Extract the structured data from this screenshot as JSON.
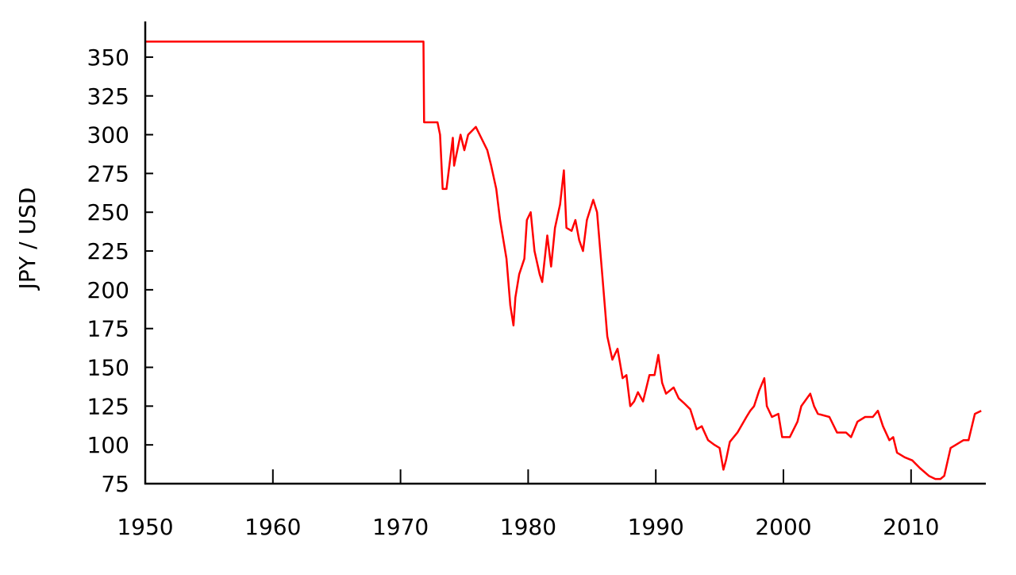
{
  "chart_data": {
    "type": "line",
    "title": "",
    "xlabel": "",
    "ylabel": "JPY / USD",
    "xlim": [
      1950,
      2015.8
    ],
    "ylim": [
      75,
      373
    ],
    "xticks": [
      1950,
      1960,
      1970,
      1980,
      1990,
      2000,
      2010
    ],
    "xtick_labels": [
      "1950",
      "1960",
      "1970",
      "1980",
      "1990",
      "2000",
      "2010"
    ],
    "yticks": [
      75,
      100,
      125,
      150,
      175,
      200,
      225,
      250,
      275,
      300,
      325,
      350
    ],
    "ytick_labels": [
      "75",
      "100",
      "125",
      "150",
      "175",
      "200",
      "225",
      "250",
      "275",
      "300",
      "325",
      "350"
    ],
    "grid": false,
    "line_color": "#ff0000",
    "series": [
      {
        "x": [
          1950,
          1971.8,
          1971.85,
          1972.9,
          1973.1,
          1973.3,
          1973.6,
          1974.1,
          1974.2,
          1974.7,
          1975.0,
          1975.3,
          1975.9,
          1976.5,
          1976.8,
          1977.1,
          1977.5,
          1977.8,
          1978.3,
          1978.6,
          1978.85,
          1979.0,
          1979.3,
          1979.7,
          1979.9,
          1980.2,
          1980.5,
          1980.9,
          1981.1,
          1981.5,
          1981.8,
          1982.1,
          1982.5,
          1982.8,
          1983.0,
          1983.4,
          1983.7,
          1984.0,
          1984.3,
          1984.6,
          1985.1,
          1985.4,
          1985.8,
          1986.2,
          1986.6,
          1987.0,
          1987.4,
          1987.7,
          1988.0,
          1988.3,
          1988.6,
          1989.0,
          1989.5,
          1989.9,
          1990.2,
          1990.5,
          1990.8,
          1991.4,
          1991.8,
          1992.2,
          1992.7,
          1993.2,
          1993.6,
          1994.1,
          1994.6,
          1995.0,
          1995.3,
          1995.5,
          1995.8,
          1996.4,
          1997.1,
          1997.4,
          1997.7,
          1998.1,
          1998.5,
          1998.7,
          1999.1,
          1999.6,
          1999.9,
          2000.5,
          2001.1,
          2001.4,
          2002.1,
          2002.4,
          2002.7,
          2003.6,
          2004.2,
          2004.9,
          2005.3,
          2005.8,
          2006.4,
          2007.0,
          2007.4,
          2007.8,
          2008.3,
          2008.6,
          2008.9,
          2009.5,
          2010.1,
          2010.7,
          2011.4,
          2011.9,
          2012.3,
          2012.6,
          2013.1,
          2013.5,
          2014.1,
          2014.5,
          2015.0,
          2015.5
        ],
        "y": [
          360,
          360,
          308,
          308,
          300,
          265,
          265,
          298,
          280,
          300,
          290,
          300,
          305,
          295,
          290,
          280,
          265,
          245,
          220,
          190,
          177,
          195,
          210,
          220,
          245,
          250,
          225,
          210,
          205,
          235,
          215,
          240,
          255,
          277,
          240,
          238,
          245,
          232,
          225,
          245,
          258,
          250,
          210,
          170,
          155,
          162,
          143,
          145,
          125,
          128,
          134,
          128,
          145,
          145,
          158,
          140,
          133,
          137,
          130,
          127,
          123,
          110,
          112,
          103,
          100,
          98,
          84,
          90,
          102,
          108,
          118,
          122,
          125,
          135,
          143,
          125,
          118,
          120,
          105,
          105,
          115,
          125,
          133,
          125,
          120,
          118,
          108,
          108,
          105,
          115,
          118,
          118,
          122,
          112,
          103,
          105,
          95,
          92,
          90,
          85,
          80,
          78,
          78,
          80,
          98,
          100,
          103,
          103,
          120,
          122
        ]
      }
    ]
  }
}
